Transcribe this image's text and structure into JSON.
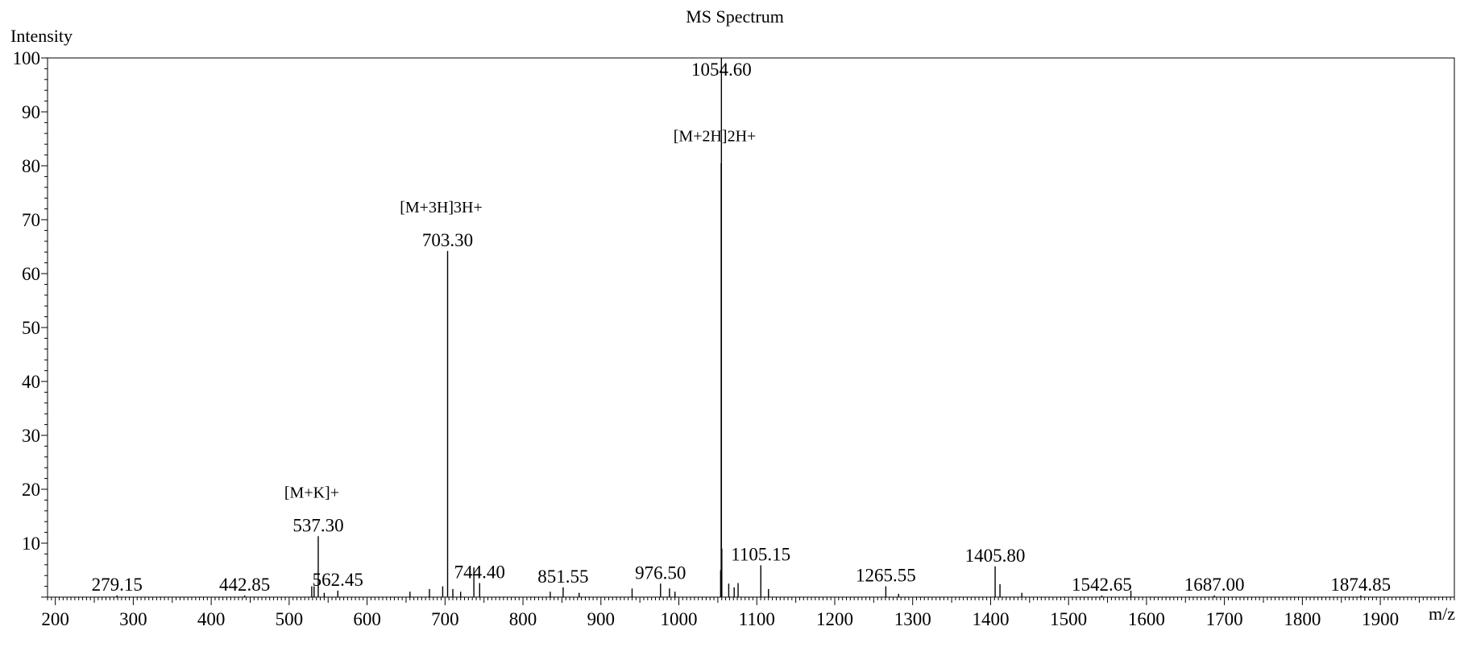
{
  "chart_data": {
    "type": "bar",
    "title": "MS Spectrum",
    "xlabel": "m/z",
    "ylabel": "Intensity",
    "xlim": [
      190,
      1995
    ],
    "ylim": [
      0,
      100
    ],
    "x_ticks": [
      200,
      300,
      400,
      500,
      600,
      700,
      800,
      900,
      1000,
      1100,
      1200,
      1300,
      1400,
      1500,
      1600,
      1700,
      1800,
      1900
    ],
    "y_ticks": [
      10,
      20,
      30,
      40,
      50,
      60,
      70,
      80,
      90,
      100
    ],
    "grid": false,
    "legend": "none",
    "colors": {
      "line": "#000000",
      "background": "#ffffff"
    },
    "peaks": [
      {
        "mz": 1054.6,
        "intensity": 100,
        "label": "1054.60"
      },
      {
        "mz": 1054.3,
        "intensity": 80.5,
        "annotation": "[M+2H]2H+"
      },
      {
        "mz": 703.3,
        "intensity": 64.2,
        "label": "703.30",
        "annotation": "[M+3H]3H+"
      },
      {
        "mz": 537.3,
        "intensity": 11.3,
        "label": "537.30",
        "annotation": "[M+K]+"
      },
      {
        "mz": 1105.15,
        "intensity": 5.9,
        "label": "1105.15"
      },
      {
        "mz": 1405.8,
        "intensity": 5.7,
        "label": "1405.80"
      },
      {
        "mz": 1055.1,
        "intensity": 9.0
      },
      {
        "mz": 1053.6,
        "intensity": 5.0
      },
      {
        "mz": 1064.0,
        "intensity": 2.5
      },
      {
        "mz": 1071.0,
        "intensity": 1.8
      },
      {
        "mz": 1076.0,
        "intensity": 2.6
      },
      {
        "mz": 1115.0,
        "intensity": 1.5
      },
      {
        "mz": 1412.0,
        "intensity": 2.4
      },
      {
        "mz": 737.0,
        "intensity": 5.5
      },
      {
        "mz": 744.4,
        "intensity": 2.6,
        "label": "744.40"
      },
      {
        "mz": 697.0,
        "intensity": 2.0
      },
      {
        "mz": 710.0,
        "intensity": 1.5
      },
      {
        "mz": 720.0,
        "intensity": 1.0
      },
      {
        "mz": 562.45,
        "intensity": 1.2,
        "label": "562.45"
      },
      {
        "mz": 529.0,
        "intensity": 2.0
      },
      {
        "mz": 532.0,
        "intensity": 2.0
      },
      {
        "mz": 545.0,
        "intensity": 0.8
      },
      {
        "mz": 680.0,
        "intensity": 1.5
      },
      {
        "mz": 655.0,
        "intensity": 1.0
      },
      {
        "mz": 851.55,
        "intensity": 1.8,
        "label": "851.55"
      },
      {
        "mz": 835.0,
        "intensity": 1.0
      },
      {
        "mz": 872.0,
        "intensity": 0.8
      },
      {
        "mz": 976.5,
        "intensity": 2.5,
        "label": "976.50"
      },
      {
        "mz": 940.0,
        "intensity": 1.6
      },
      {
        "mz": 988.0,
        "intensity": 1.6
      },
      {
        "mz": 995.0,
        "intensity": 1.0
      },
      {
        "mz": 1265.55,
        "intensity": 2.0,
        "label": "1265.55"
      },
      {
        "mz": 1282.0,
        "intensity": 0.6
      },
      {
        "mz": 1440.0,
        "intensity": 0.8
      },
      {
        "mz": 279.15,
        "intensity": 0.3,
        "label": "279.15"
      },
      {
        "mz": 442.85,
        "intensity": 0.3,
        "label": "442.85"
      },
      {
        "mz": 1542.65,
        "intensity": 0.3,
        "label": "1542.65"
      },
      {
        "mz": 1580.0,
        "intensity": 1.2
      },
      {
        "mz": 1687.0,
        "intensity": 0.3,
        "label": "1687.00"
      },
      {
        "mz": 1874.85,
        "intensity": 0.3,
        "label": "1874.85"
      }
    ]
  }
}
